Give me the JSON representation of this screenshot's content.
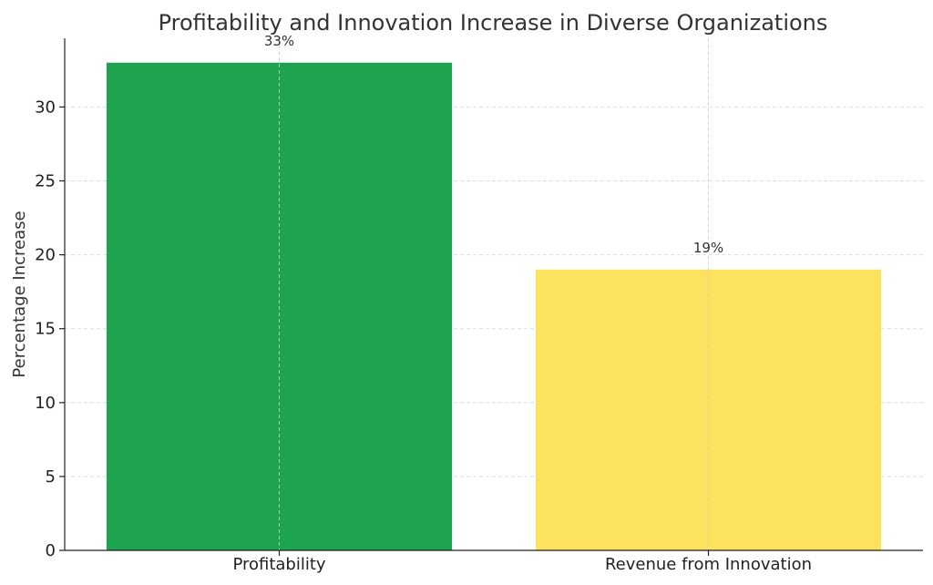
{
  "chart_data": {
    "type": "bar",
    "title": "Profitability and Innovation Increase in Diverse Organizations",
    "xlabel": "",
    "ylabel": "Percentage Increase",
    "categories": [
      "Profitability",
      "Revenue from Innovation"
    ],
    "values": [
      33,
      19
    ],
    "data_labels": [
      "33%",
      "19%"
    ],
    "colors": [
      "#1ea44f",
      "#fde25e"
    ],
    "ylim": [
      0,
      34.65
    ],
    "yticks": [
      0,
      5,
      10,
      15,
      20,
      25,
      30
    ],
    "grid": true,
    "legend": "none"
  }
}
